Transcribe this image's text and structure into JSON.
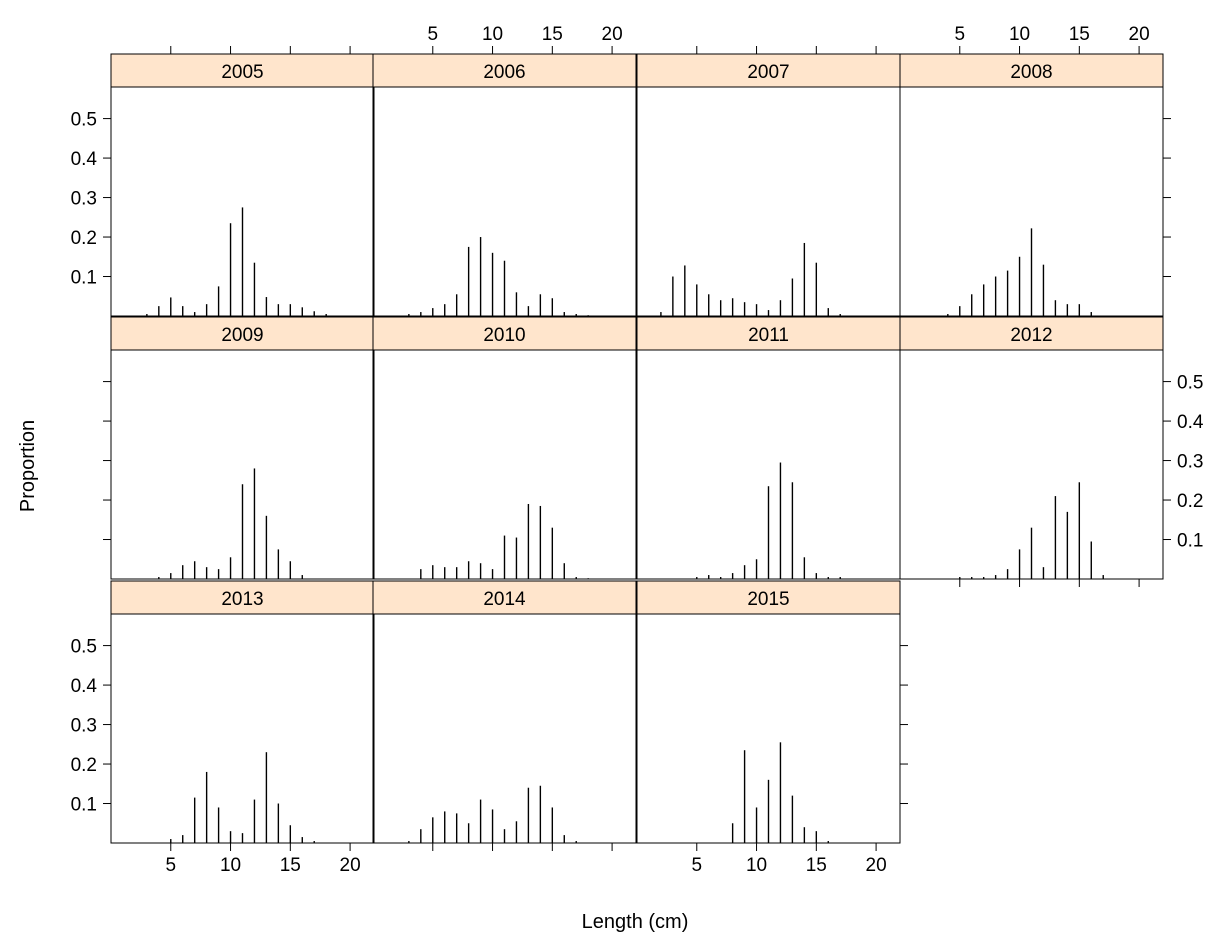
{
  "chart_data": {
    "type": "bar",
    "layout": "trellis",
    "xlabel": "Length (cm)",
    "ylabel": "Proportion",
    "xlim": [
      0,
      22
    ],
    "ylim": [
      0,
      0.58
    ],
    "x_ticks": [
      5,
      10,
      15,
      20
    ],
    "y_ticks": [
      0.1,
      0.2,
      0.3,
      0.4,
      0.5
    ],
    "strip_color": "#ffe5cc",
    "x_tick_labels": [
      "5",
      "10",
      "15",
      "20"
    ],
    "y_tick_labels": [
      "0.1",
      "0.2",
      "0.3",
      "0.4",
      "0.5"
    ],
    "panels": [
      {
        "year": "2005",
        "x": [
          3,
          4,
          5,
          6,
          7,
          8,
          9,
          10,
          11,
          12,
          13,
          14,
          15,
          16,
          17,
          18
        ],
        "values": [
          0.005,
          0.025,
          0.047,
          0.025,
          0.01,
          0.03,
          0.075,
          0.235,
          0.275,
          0.135,
          0.048,
          0.03,
          0.03,
          0.022,
          0.012,
          0.005
        ]
      },
      {
        "year": "2006",
        "x": [
          3,
          4,
          5,
          6,
          7,
          8,
          9,
          10,
          11,
          12,
          13,
          14,
          15,
          16,
          17,
          18
        ],
        "values": [
          0.005,
          0.01,
          0.02,
          0.03,
          0.055,
          0.175,
          0.2,
          0.16,
          0.14,
          0.06,
          0.025,
          0.055,
          0.045,
          0.01,
          0.005,
          0.002
        ]
      },
      {
        "year": "2007",
        "x": [
          2,
          3,
          4,
          5,
          6,
          7,
          8,
          9,
          10,
          11,
          12,
          13,
          14,
          15,
          16,
          17
        ],
        "values": [
          0.01,
          0.1,
          0.128,
          0.08,
          0.055,
          0.04,
          0.045,
          0.035,
          0.03,
          0.015,
          0.04,
          0.095,
          0.185,
          0.135,
          0.02,
          0.005
        ]
      },
      {
        "year": "2008",
        "x": [
          4,
          5,
          6,
          7,
          8,
          9,
          10,
          11,
          12,
          13,
          14,
          15,
          16
        ],
        "values": [
          0.005,
          0.025,
          0.055,
          0.08,
          0.1,
          0.115,
          0.15,
          0.222,
          0.13,
          0.04,
          0.03,
          0.03,
          0.01
        ]
      },
      {
        "year": "2009",
        "x": [
          4,
          5,
          6,
          7,
          8,
          9,
          10,
          11,
          12,
          13,
          14,
          15,
          16
        ],
        "values": [
          0.005,
          0.015,
          0.035,
          0.045,
          0.03,
          0.025,
          0.055,
          0.24,
          0.28,
          0.16,
          0.075,
          0.045,
          0.01
        ]
      },
      {
        "year": "2010",
        "x": [
          4,
          5,
          6,
          7,
          8,
          9,
          10,
          11,
          12,
          13,
          14,
          15,
          16,
          17,
          18
        ],
        "values": [
          0.025,
          0.035,
          0.03,
          0.03,
          0.045,
          0.04,
          0.025,
          0.11,
          0.105,
          0.19,
          0.185,
          0.13,
          0.04,
          0.005,
          0.002
        ]
      },
      {
        "year": "2011",
        "x": [
          5,
          6,
          7,
          8,
          9,
          10,
          11,
          12,
          13,
          14,
          15,
          16,
          17
        ],
        "values": [
          0.005,
          0.01,
          0.005,
          0.015,
          0.035,
          0.05,
          0.235,
          0.295,
          0.245,
          0.055,
          0.015,
          0.005,
          0.005
        ]
      },
      {
        "year": "2012",
        "x": [
          5,
          6,
          7,
          8,
          9,
          10,
          11,
          12,
          13,
          14,
          15,
          16,
          17
        ],
        "values": [
          0.005,
          0.005,
          0.005,
          0.01,
          0.025,
          0.075,
          0.13,
          0.03,
          0.21,
          0.17,
          0.245,
          0.095,
          0.01
        ]
      },
      {
        "year": "2013",
        "x": [
          5,
          6,
          7,
          8,
          9,
          10,
          11,
          12,
          13,
          14,
          15,
          16,
          17
        ],
        "values": [
          0.01,
          0.02,
          0.115,
          0.18,
          0.09,
          0.03,
          0.025,
          0.11,
          0.23,
          0.1,
          0.045,
          0.015,
          0.005
        ]
      },
      {
        "year": "2014",
        "x": [
          3,
          4,
          5,
          6,
          7,
          8,
          9,
          10,
          11,
          12,
          13,
          14,
          15,
          16,
          17
        ],
        "values": [
          0.005,
          0.035,
          0.065,
          0.08,
          0.075,
          0.05,
          0.11,
          0.085,
          0.035,
          0.055,
          0.14,
          0.145,
          0.09,
          0.02,
          0.005
        ]
      },
      {
        "year": "2015",
        "x": [
          8,
          9,
          10,
          11,
          12,
          13,
          14,
          15,
          16
        ],
        "values": [
          0.05,
          0.235,
          0.09,
          0.16,
          0.255,
          0.12,
          0.04,
          0.03,
          0.005
        ]
      }
    ]
  }
}
